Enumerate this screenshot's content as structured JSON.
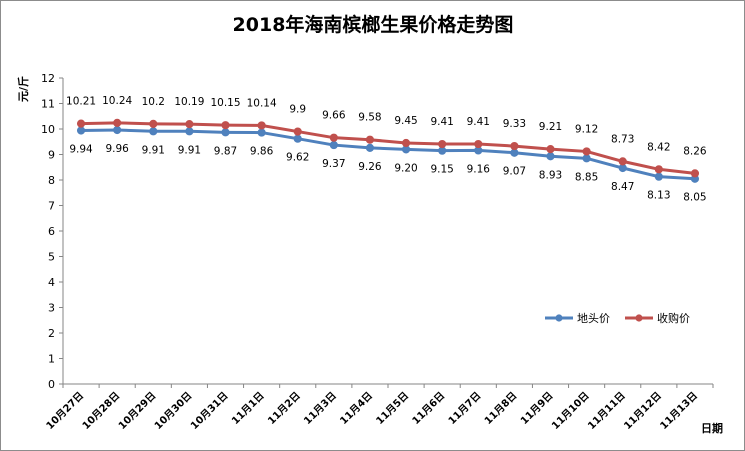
{
  "chart_data": {
    "type": "line",
    "title": "2018年海南槟榔生果价格走势图",
    "xlabel": "日期",
    "ylabel": "元/斤",
    "ylim": [
      0,
      12
    ],
    "yticks": [
      "0",
      "1",
      "2",
      "3",
      "4",
      "5",
      "6",
      "7",
      "8",
      "9",
      "10",
      "11",
      "12"
    ],
    "grid": false,
    "legend_position": "bottom-right",
    "categories": [
      "10月27日",
      "10月28日",
      "10月29日",
      "10月30日",
      "10月31日",
      "11月1日",
      "11月2日",
      "11月3日",
      "11月4日",
      "11月5日",
      "11月6日",
      "11月7日",
      "11月8日",
      "11月9日",
      "11月10日",
      "11月11日",
      "11月12日",
      "11月13日"
    ],
    "series": [
      {
        "name": "地头价",
        "color": "#4f81bd",
        "values": [
          9.94,
          9.96,
          9.91,
          9.91,
          9.87,
          9.86,
          9.62,
          9.37,
          9.26,
          9.2,
          9.15,
          9.16,
          9.07,
          8.93,
          8.85,
          8.47,
          8.13,
          8.05
        ],
        "labels": [
          "9.94",
          "9.96",
          "9.91",
          "9.91",
          "9.87",
          "9.86",
          "9.62",
          "9.37",
          "9.26",
          "9.20",
          "9.15",
          "9.16",
          "9.07",
          "8.93",
          "8.85",
          "8.47",
          "8.13",
          "8.05"
        ]
      },
      {
        "name": "收购价",
        "color": "#c0504d",
        "values": [
          10.21,
          10.24,
          10.2,
          10.19,
          10.15,
          10.14,
          9.9,
          9.66,
          9.58,
          9.45,
          9.41,
          9.41,
          9.33,
          9.21,
          9.12,
          8.73,
          8.42,
          8.26
        ],
        "labels": [
          "10.21",
          "10.24",
          "10.2",
          "10.19",
          "10.15",
          "10.14",
          "9.9",
          "9.66",
          "9.58",
          "9.45",
          "9.41",
          "9.41",
          "9.33",
          "9.21",
          "9.12",
          "8.73",
          "8.42",
          "8.26"
        ]
      }
    ]
  }
}
